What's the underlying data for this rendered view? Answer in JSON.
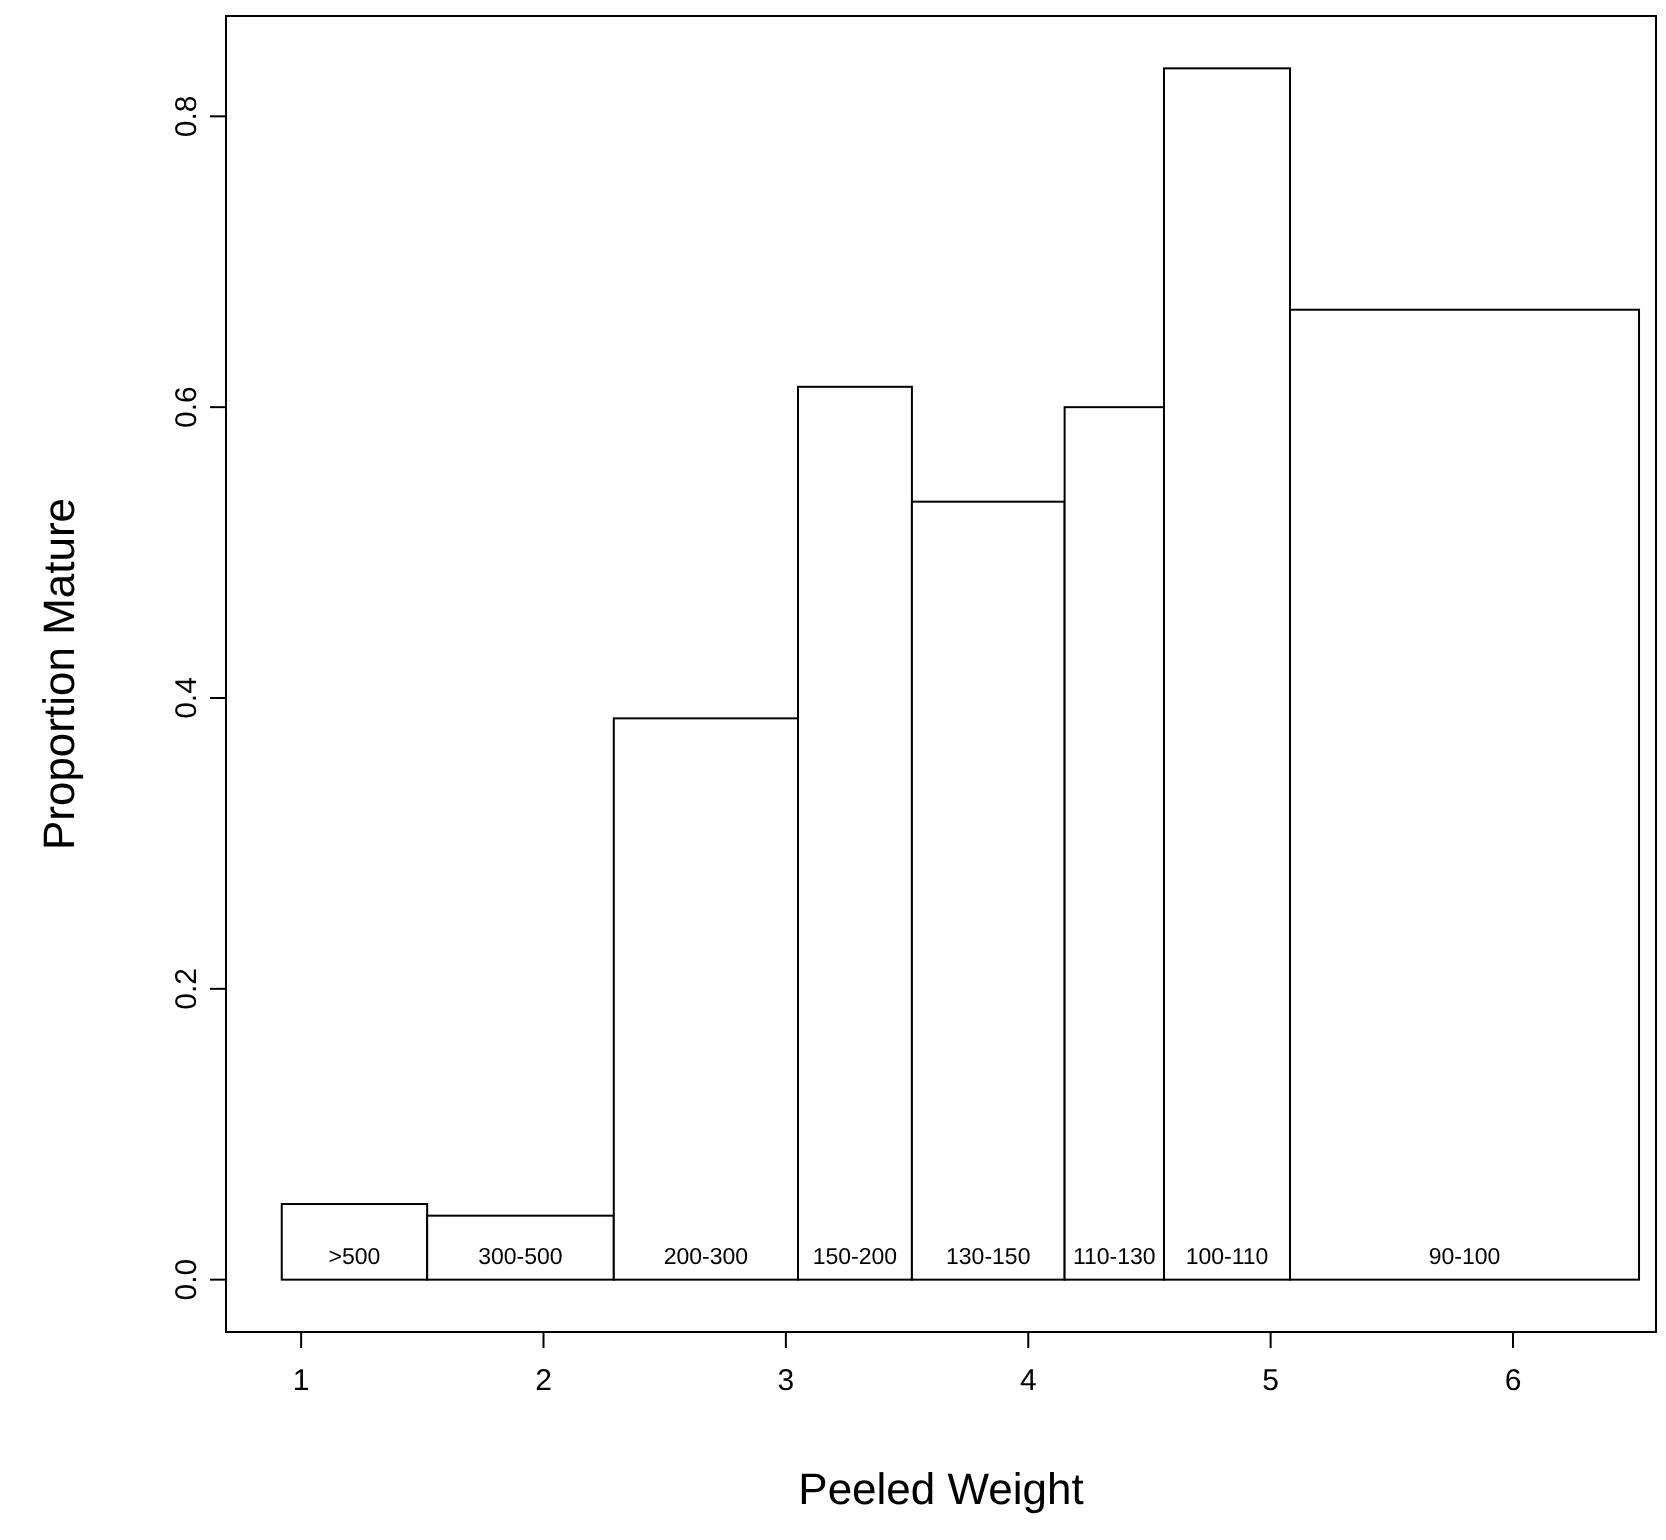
{
  "chart_data": {
    "type": "histogram",
    "xlabel": "Peeled Weight",
    "ylabel": "Proportion Mature",
    "bins": [
      0.92,
      1.52,
      2.29,
      3.05,
      3.52,
      4.15,
      4.56,
      5.08,
      6.52
    ],
    "values": [
      0.052,
      0.044,
      0.386,
      0.614,
      0.535,
      0.6,
      0.833,
      0.667
    ],
    "color": "#ffffff",
    "xlim": [
      0.69,
      6.59
    ],
    "ylim": [
      -0.036,
      0.869
    ],
    "xticks": [
      1,
      2,
      3,
      4,
      5,
      6
    ],
    "yticks": [
      {
        "value": 0,
        "label": "0.0"
      },
      {
        "value": 0.2,
        "label": "0.2"
      },
      {
        "value": 0.4,
        "label": "0.4"
      },
      {
        "value": 0.6,
        "label": "0.6"
      },
      {
        "value": 0.8,
        "label": "0.8"
      }
    ],
    "annotations": [
      ">500",
      "300-500",
      "200-300",
      "150-200",
      "130-150",
      "110-130",
      "100-110",
      "90-100"
    ],
    "grid": false
  }
}
